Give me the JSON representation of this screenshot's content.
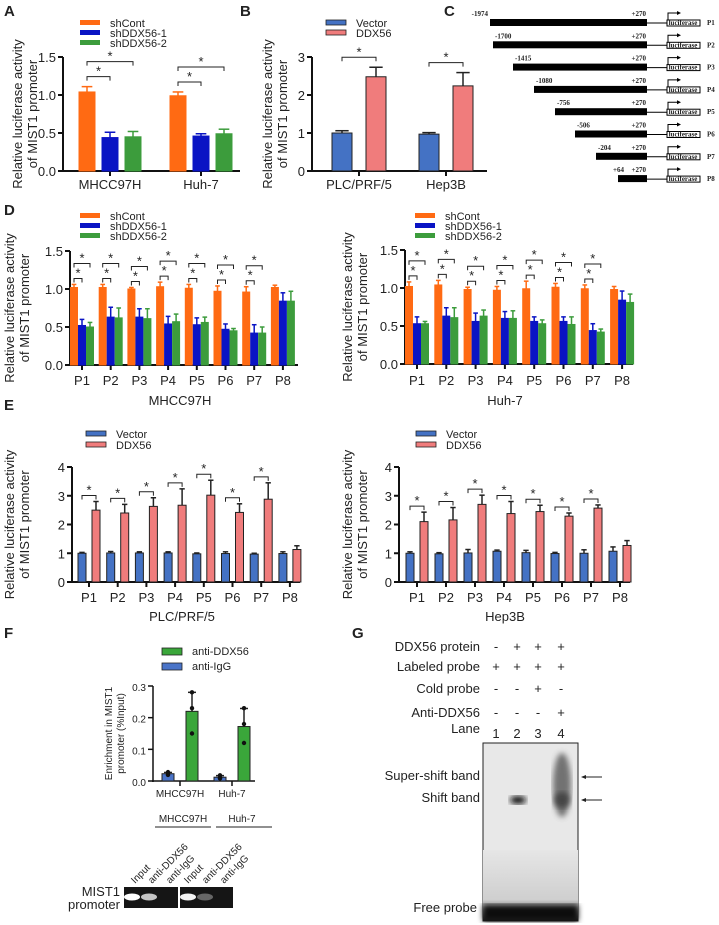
{
  "panel_labels": [
    "A",
    "B",
    "C",
    "D",
    "E",
    "F",
    "G"
  ],
  "colors": {
    "shCont": "#ff6a13",
    "shDDX56-1": "#0a14c4",
    "shDDX56-2": "#3c9c3c",
    "Vector": "#4472c4",
    "DDX56": "#f07c7c",
    "anti-DDX56": "#3aa63a",
    "anti-IgG": "#4a74c8"
  },
  "chart_data": [
    {
      "id": "A",
      "type": "bar",
      "ylabel": [
        "Relative luciferase activity",
        "of MIST1 promoter"
      ],
      "xlabel": "",
      "ylim": [
        0,
        1.5
      ],
      "yticks": [
        0,
        0.5,
        1,
        1.5
      ],
      "ytick_labels": [
        "0.0",
        "0.5",
        "1.0",
        "1.5"
      ],
      "categories": [
        "MHCC97H",
        "Huh-7"
      ],
      "series": [
        {
          "name": "shCont",
          "values": [
            1.04,
            0.99
          ],
          "errors": [
            0.07,
            0.05
          ]
        },
        {
          "name": "shDDX56-1",
          "values": [
            0.44,
            0.46
          ],
          "errors": [
            0.07,
            0.03
          ]
        },
        {
          "name": "shDDX56-2",
          "values": [
            0.45,
            0.49
          ],
          "errors": [
            0.07,
            0.06
          ]
        }
      ],
      "significance": [
        [
          0,
          0,
          1,
          "*"
        ],
        [
          0,
          0,
          2,
          "*"
        ],
        [
          1,
          0,
          1,
          "*"
        ],
        [
          1,
          0,
          2,
          "*"
        ]
      ]
    },
    {
      "id": "B",
      "type": "bar",
      "ylabel": [
        "Relative luciferase activity",
        "of MIST1 promoter"
      ],
      "xlabel": "",
      "ylim": [
        0,
        3
      ],
      "yticks": [
        0,
        1,
        2,
        3
      ],
      "ytick_labels": [
        "0",
        "1",
        "2",
        "3"
      ],
      "categories": [
        "PLC/PRF/5",
        "Hep3B"
      ],
      "series": [
        {
          "name": "Vector",
          "values": [
            1.0,
            0.97
          ],
          "errors": [
            0.06,
            0.04
          ]
        },
        {
          "name": "DDX56",
          "values": [
            2.48,
            2.24
          ],
          "errors": [
            0.25,
            0.35
          ]
        }
      ],
      "significance": [
        [
          0,
          0,
          1,
          "*"
        ],
        [
          1,
          0,
          1,
          "*"
        ]
      ]
    },
    {
      "id": "D1",
      "type": "bar",
      "ylabel": [
        "Relative luciferase activity",
        "of MIST1 promoter"
      ],
      "xlabel": "MHCC97H",
      "ylim": [
        0,
        1.5
      ],
      "yticks": [
        0,
        0.5,
        1,
        1.5
      ],
      "ytick_labels": [
        "0.0",
        "0.5",
        "1.0",
        "1.5"
      ],
      "categories": [
        "P1",
        "P2",
        "P3",
        "P4",
        "P5",
        "P6",
        "P7",
        "P8"
      ],
      "series": [
        {
          "name": "shCont",
          "values": [
            1.02,
            1.02,
            1.0,
            1.03,
            1.01,
            0.97,
            0.96,
            1.02
          ],
          "errors": [
            0.04,
            0.04,
            0.02,
            0.06,
            0.05,
            0.07,
            0.07,
            0.03
          ]
        },
        {
          "name": "shDDX56-1",
          "values": [
            0.52,
            0.63,
            0.63,
            0.54,
            0.53,
            0.47,
            0.42,
            0.84
          ],
          "errors": [
            0.08,
            0.13,
            0.11,
            0.1,
            0.09,
            0.07,
            0.11,
            0.11
          ]
        },
        {
          "name": "shDDX56-2",
          "values": [
            0.5,
            0.62,
            0.61,
            0.57,
            0.56,
            0.45,
            0.42,
            0.84
          ],
          "errors": [
            0.06,
            0.13,
            0.13,
            0.1,
            0.07,
            0.03,
            0.08,
            0.13
          ]
        }
      ],
      "significance": [
        [
          0,
          0,
          1,
          "*"
        ],
        [
          0,
          0,
          2,
          "*"
        ],
        [
          1,
          0,
          1,
          "*"
        ],
        [
          1,
          0,
          2,
          "*"
        ],
        [
          2,
          0,
          1,
          "*"
        ],
        [
          2,
          0,
          2,
          "*"
        ],
        [
          3,
          0,
          1,
          "*"
        ],
        [
          3,
          0,
          2,
          "*"
        ],
        [
          4,
          0,
          1,
          "*"
        ],
        [
          4,
          0,
          2,
          "*"
        ],
        [
          5,
          0,
          1,
          "*"
        ],
        [
          5,
          0,
          2,
          "*"
        ],
        [
          6,
          0,
          1,
          "*"
        ],
        [
          6,
          0,
          2,
          "*"
        ]
      ]
    },
    {
      "id": "D2",
      "type": "bar",
      "ylabel": [
        "Relative luciferase activity",
        "of MIST1 promoter"
      ],
      "xlabel": "Huh-7",
      "ylim": [
        0,
        1.5
      ],
      "yticks": [
        0,
        0.5,
        1,
        1.5
      ],
      "ytick_labels": [
        "0.0",
        "0.5",
        "1.0",
        "1.5"
      ],
      "categories": [
        "P1",
        "P2",
        "P3",
        "P4",
        "P5",
        "P6",
        "P7",
        "P8"
      ],
      "series": [
        {
          "name": "shCont",
          "values": [
            1.02,
            1.04,
            0.98,
            0.97,
            0.99,
            1.01,
            0.99,
            0.98
          ],
          "errors": [
            0.06,
            0.06,
            0.03,
            0.05,
            0.1,
            0.05,
            0.05,
            0.04
          ]
        },
        {
          "name": "shDDX56-1",
          "values": [
            0.53,
            0.63,
            0.56,
            0.6,
            0.56,
            0.56,
            0.44,
            0.84
          ],
          "errors": [
            0.09,
            0.11,
            0.11,
            0.09,
            0.06,
            0.06,
            0.09,
            0.12
          ]
        },
        {
          "name": "shDDX56-2",
          "values": [
            0.53,
            0.61,
            0.63,
            0.6,
            0.53,
            0.52,
            0.42,
            0.81
          ],
          "errors": [
            0.03,
            0.13,
            0.08,
            0.1,
            0.05,
            0.1,
            0.04,
            0.11
          ]
        }
      ],
      "significance": [
        [
          0,
          0,
          1,
          "*"
        ],
        [
          0,
          0,
          2,
          "*"
        ],
        [
          1,
          0,
          1,
          "*"
        ],
        [
          1,
          0,
          2,
          "*"
        ],
        [
          2,
          0,
          1,
          "*"
        ],
        [
          2,
          0,
          2,
          "*"
        ],
        [
          3,
          0,
          1,
          "*"
        ],
        [
          3,
          0,
          2,
          "*"
        ],
        [
          4,
          0,
          1,
          "*"
        ],
        [
          4,
          0,
          2,
          "*"
        ],
        [
          5,
          0,
          1,
          "*"
        ],
        [
          5,
          0,
          2,
          "*"
        ],
        [
          6,
          0,
          1,
          "*"
        ],
        [
          6,
          0,
          2,
          "*"
        ]
      ]
    },
    {
      "id": "E1",
      "type": "bar",
      "ylabel": [
        "Relative luciferase activity",
        "of MIST1 promoter"
      ],
      "xlabel": "PLC/PRF/5",
      "ylim": [
        0,
        4
      ],
      "yticks": [
        0,
        1,
        2,
        3,
        4
      ],
      "ytick_labels": [
        "0",
        "1",
        "2",
        "3",
        "4"
      ],
      "categories": [
        "P1",
        "P2",
        "P3",
        "P4",
        "P5",
        "P6",
        "P7",
        "P8"
      ],
      "series": [
        {
          "name": "Vector",
          "values": [
            1.0,
            1.01,
            1.01,
            1.01,
            0.98,
            0.99,
            0.97,
            0.99
          ],
          "errors": [
            0.03,
            0.05,
            0.04,
            0.04,
            0.03,
            0.06,
            0.03,
            0.06
          ]
        },
        {
          "name": "DDX56",
          "values": [
            2.5,
            2.4,
            2.63,
            2.67,
            3.02,
            2.42,
            2.88,
            1.13
          ],
          "errors": [
            0.3,
            0.3,
            0.3,
            0.57,
            0.52,
            0.3,
            0.57,
            0.13
          ]
        }
      ],
      "significance": [
        [
          0,
          0,
          1,
          "*"
        ],
        [
          1,
          0,
          1,
          "*"
        ],
        [
          2,
          0,
          1,
          "*"
        ],
        [
          3,
          0,
          1,
          "*"
        ],
        [
          4,
          0,
          1,
          "*"
        ],
        [
          5,
          0,
          1,
          "*"
        ],
        [
          6,
          0,
          1,
          "*"
        ]
      ]
    },
    {
      "id": "E2",
      "type": "bar",
      "ylabel": [
        "Relative luciferase activity",
        "of MIST1 promoter"
      ],
      "xlabel": "Hep3B",
      "ylim": [
        0,
        4
      ],
      "yticks": [
        0,
        1,
        2,
        3,
        4
      ],
      "ytick_labels": [
        "0",
        "1",
        "2",
        "3",
        "4"
      ],
      "categories": [
        "P1",
        "P2",
        "P3",
        "P4",
        "P5",
        "P6",
        "P7",
        "P8"
      ],
      "series": [
        {
          "name": "Vector",
          "values": [
            1.0,
            0.98,
            1.01,
            1.07,
            1.02,
            0.99,
            1.0,
            1.07
          ],
          "errors": [
            0.05,
            0.04,
            0.12,
            0.04,
            0.08,
            0.04,
            0.12,
            0.15
          ]
        },
        {
          "name": "DDX56",
          "values": [
            2.1,
            2.16,
            2.7,
            2.38,
            2.45,
            2.29,
            2.57,
            1.27
          ],
          "errors": [
            0.33,
            0.43,
            0.32,
            0.42,
            0.22,
            0.11,
            0.11,
            0.17
          ]
        }
      ],
      "significance": [
        [
          0,
          0,
          1,
          "*"
        ],
        [
          1,
          0,
          1,
          "*"
        ],
        [
          2,
          0,
          1,
          "*"
        ],
        [
          3,
          0,
          1,
          "*"
        ],
        [
          4,
          0,
          1,
          "*"
        ],
        [
          5,
          0,
          1,
          "*"
        ],
        [
          6,
          0,
          1,
          "*"
        ]
      ]
    },
    {
      "id": "F",
      "type": "bar",
      "ylabel": [
        "Enrichment in MIST1",
        "promoter  (%Input)"
      ],
      "xlabel": "",
      "ylim": [
        0,
        0.3
      ],
      "yticks": [
        0,
        0.1,
        0.2,
        0.3
      ],
      "ytick_labels": [
        "0.0",
        "0.1",
        "0.2",
        "0.3"
      ],
      "categories": [
        "MHCC97H",
        "Huh-7"
      ],
      "legend_order": [
        1,
        0
      ],
      "series": [
        {
          "name": "anti-IgG",
          "values": [
            0.023,
            0.012
          ],
          "errors": [
            0.004,
            0.005
          ],
          "points": [
            [
              0.028,
              0.022,
              0.019
            ],
            [
              0.018,
              0.01,
              0.008
            ]
          ]
        },
        {
          "name": "anti-DDX56",
          "values": [
            0.22,
            0.172
          ],
          "errors": [
            0.06,
            0.057
          ],
          "points": [
            [
              0.28,
              0.23,
              0.15
            ],
            [
              0.23,
              0.18,
              0.12
            ]
          ]
        }
      ],
      "significance": []
    }
  ],
  "panel_c": {
    "end_label": "+270",
    "reporter": "luciferase",
    "constructs": [
      {
        "name": "P1",
        "start": "-1974"
      },
      {
        "name": "P2",
        "start": "-1700"
      },
      {
        "name": "P3",
        "start": "-1415"
      },
      {
        "name": "P4",
        "start": "-1080"
      },
      {
        "name": "P5",
        "start": "-756"
      },
      {
        "name": "P6",
        "start": "-506"
      },
      {
        "name": "P7",
        "start": "-204"
      },
      {
        "name": "P8",
        "start": "+64"
      }
    ]
  },
  "panel_f_gel": {
    "groups": [
      "MHCC97H",
      "Huh-7"
    ],
    "lanes": [
      "Input",
      "anti-DDX56",
      "anti-IgG",
      "Input",
      "anti-DDX56",
      "anti-IgG"
    ],
    "row_label": [
      "MIST1",
      "promoter"
    ]
  },
  "panel_g": {
    "rows": [
      {
        "label": "DDX56 protein",
        "values": [
          "-",
          "+",
          "+",
          "+"
        ]
      },
      {
        "label": "Labeled probe",
        "values": [
          "+",
          "+",
          "+",
          "+"
        ]
      },
      {
        "label": "Cold probe",
        "values": [
          "-",
          "-",
          "+",
          "-"
        ]
      },
      {
        "label": "Anti-DDX56",
        "values": [
          "-",
          "-",
          "-",
          "+"
        ]
      },
      {
        "label": "Lane",
        "values": [
          "1",
          "2",
          "3",
          "4"
        ]
      }
    ],
    "bands": [
      "Super-shift band",
      "Shift band",
      "Free probe"
    ]
  }
}
